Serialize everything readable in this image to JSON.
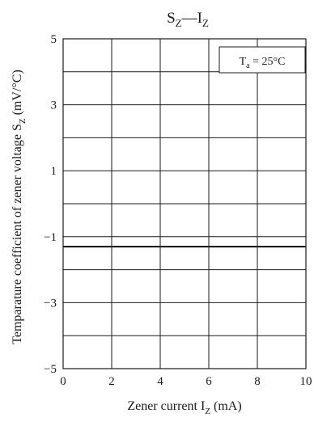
{
  "chart_data": {
    "type": "line",
    "title": {
      "main": "S",
      "main_sub": "Z",
      "sep": "—",
      "rest": "I",
      "rest_sub": "Z"
    },
    "xlabel": {
      "text": "Zener current  I",
      "sub": "Z",
      "unit": "  (mA)"
    },
    "ylabel": {
      "text": "Temparature coefficient of zener voltage  S",
      "sub": "Z",
      "unit": "  (mV/°C)"
    },
    "xlim": [
      0,
      10
    ],
    "ylim": [
      -5,
      5
    ],
    "x_ticks": [
      "0",
      "2",
      "4",
      "6",
      "8",
      "10"
    ],
    "y_ticks": [
      "5",
      "3",
      "1",
      "−1",
      "−3",
      "−5"
    ],
    "grid": true,
    "annotation": {
      "T": "T",
      "sub": "a",
      "rest": " = 25°C"
    },
    "series": [
      {
        "x": [
          0,
          10
        ],
        "y": [
          -1.3,
          -1.3
        ],
        "color": "#1a1a1a"
      }
    ]
  }
}
